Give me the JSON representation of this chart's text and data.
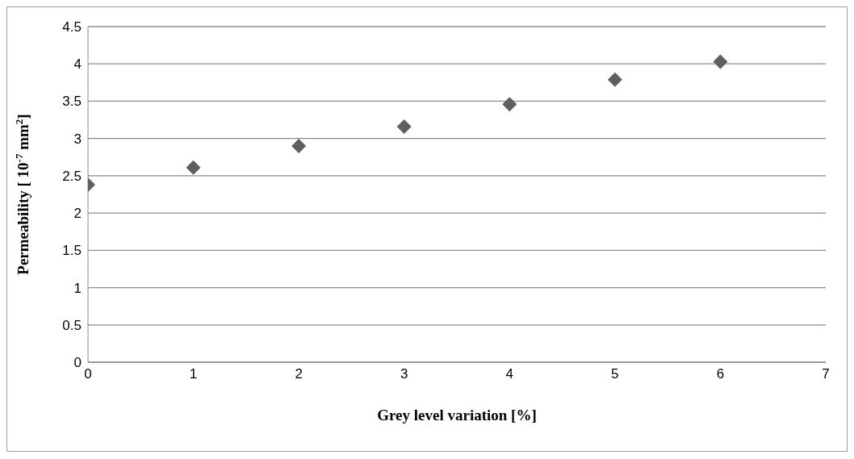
{
  "chart_data": {
    "type": "scatter",
    "xlabel": "Grey level variation [%]",
    "ylabel": "Permeability [  10$^{-7}$ mm$^{2}$]",
    "x": [
      0,
      1,
      2,
      3,
      4,
      5,
      6
    ],
    "series": [
      {
        "color": "#5f5f5f",
        "values": [
          2.38,
          2.61,
          2.9,
          3.16,
          3.46,
          3.79,
          4.03
        ]
      }
    ],
    "xlim": [
      0,
      7
    ],
    "xticks": [
      0,
      1,
      2,
      3,
      4,
      5,
      6,
      7
    ],
    "ylim": [
      0,
      4.5
    ],
    "yticks": [
      0,
      0.5,
      1,
      1.5,
      2,
      2.5,
      3,
      3.5,
      4,
      4.5
    ],
    "grid": "y",
    "marker": "diamond",
    "legend": false
  }
}
